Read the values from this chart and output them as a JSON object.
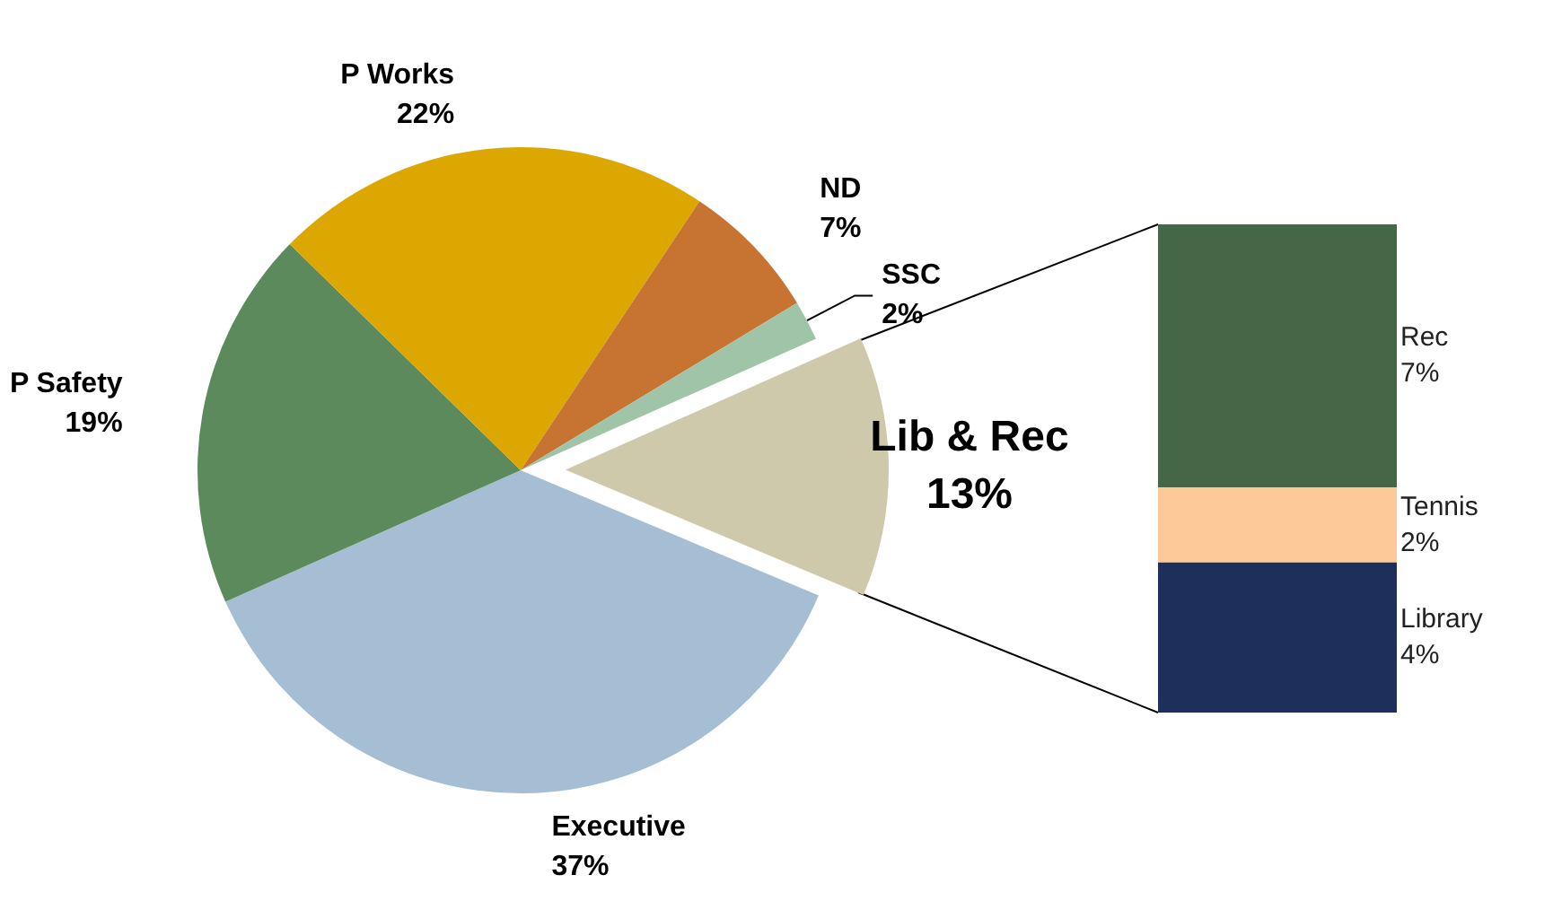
{
  "chart_data": [
    {
      "type": "pie",
      "categories": [
        "Lib & Rec",
        "Executive",
        "P Safety",
        "P Works",
        "ND",
        "SSC"
      ],
      "values": [
        13,
        37,
        19,
        22,
        7,
        2
      ],
      "value_labels": [
        "13%",
        "37%",
        "19%",
        "22%",
        "7%",
        "2%"
      ],
      "colors": [
        "#cdc9aa",
        "#a6bed3",
        "#5c8a5c",
        "#dca800",
        "#c77432",
        "#9fc4a8"
      ]
    },
    {
      "type": "bar",
      "stacked": true,
      "categories": [
        null
      ],
      "series": [
        {
          "name": "Library",
          "color": "#1f2f5c",
          "values": [
            4
          ],
          "value_labels": [
            "4%"
          ]
        },
        {
          "name": "Tennis",
          "color": "#fdc998",
          "values": [
            2
          ],
          "value_labels": [
            "2%"
          ]
        },
        {
          "name": "Rec",
          "color": "#466648",
          "values": [
            7
          ],
          "value_labels": [
            "7%"
          ]
        }
      ]
    }
  ]
}
